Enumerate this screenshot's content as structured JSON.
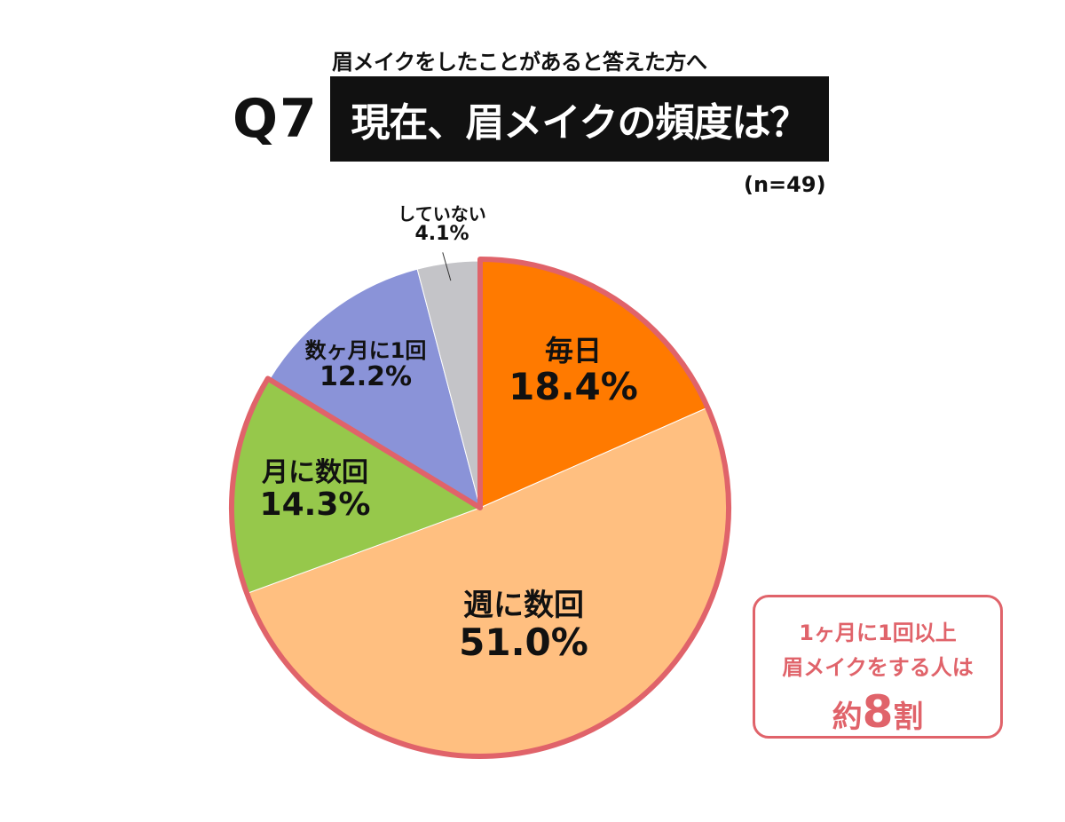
{
  "header": {
    "subtitle": "眉メイクをしたことがあると答えた方へ",
    "question_number": "Q7",
    "title": "現在、眉メイクの頻度は？",
    "sample_size": "(n=49)"
  },
  "chart_data": {
    "type": "pie",
    "slices": [
      {
        "label": "毎日",
        "value": 18.4,
        "value_text": "18.4%",
        "color": "#ff7a00"
      },
      {
        "label": "週に数回",
        "value": 51.0,
        "value_text": "51.0%",
        "color": "#ffbf80"
      },
      {
        "label": "月に数回",
        "value": 14.3,
        "value_text": "14.3%",
        "color": "#96c84b"
      },
      {
        "label": "数ヶ月に1回",
        "value": 12.2,
        "value_text": "12.2%",
        "color": "#8a93d8"
      },
      {
        "label": "していない",
        "value": 4.1,
        "value_text": "4.1%",
        "color": "#c4c4c8"
      }
    ],
    "highlight_color": "#e0636a",
    "highlighted_slices": [
      "毎日",
      "週に数回",
      "月に数回"
    ]
  },
  "callout": {
    "line1": "1ヶ月に1回以上",
    "line2": "眉メイクをする人は",
    "prefix": "約",
    "number": "8",
    "suffix": "割"
  }
}
